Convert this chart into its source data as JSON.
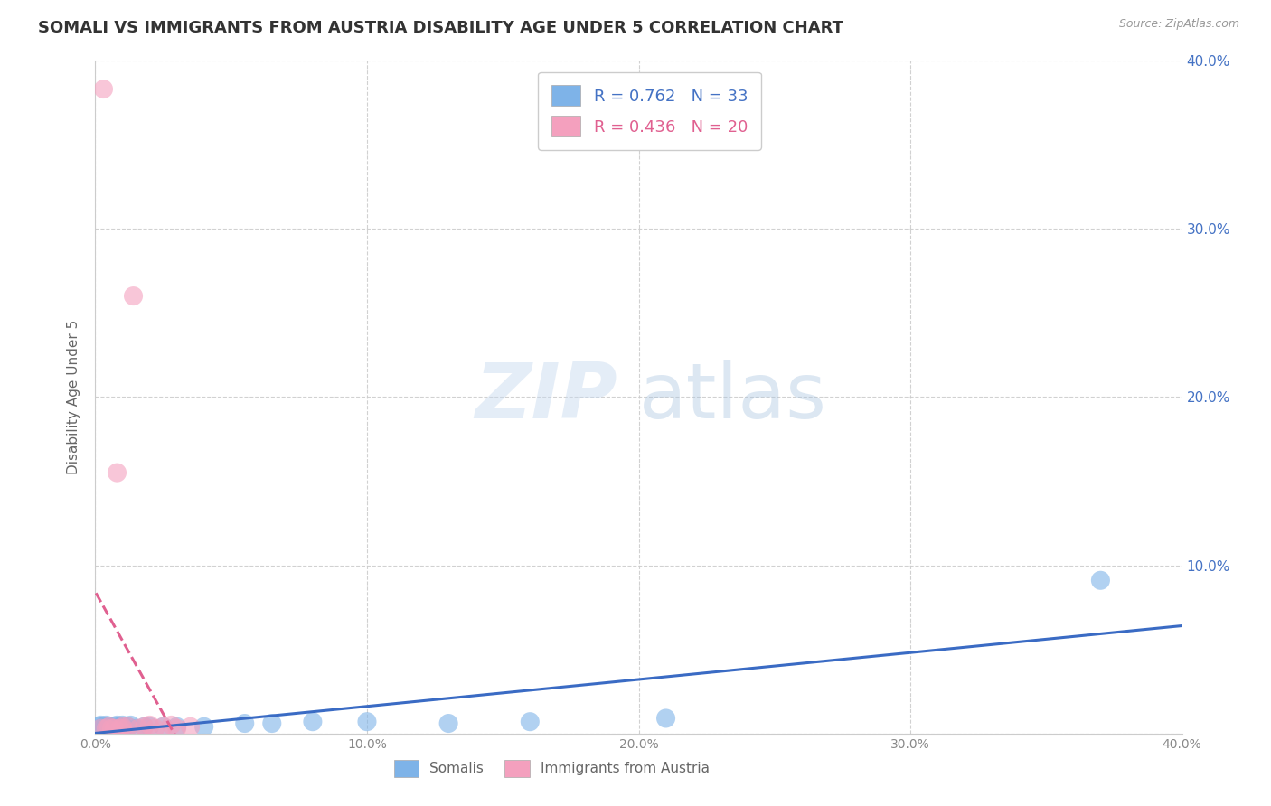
{
  "title": "SOMALI VS IMMIGRANTS FROM AUSTRIA DISABILITY AGE UNDER 5 CORRELATION CHART",
  "source": "Source: ZipAtlas.com",
  "ylabel": "Disability Age Under 5",
  "watermark_zip": "ZIP",
  "watermark_atlas": "atlas",
  "xlim": [
    0.0,
    0.4
  ],
  "ylim": [
    0.0,
    0.4
  ],
  "x_ticks": [
    0.0,
    0.1,
    0.2,
    0.3,
    0.4
  ],
  "y_ticks": [
    0.0,
    0.1,
    0.2,
    0.3,
    0.4
  ],
  "somali_color": "#7EB3E8",
  "austria_color": "#F4A0BE",
  "somali_line_color": "#3A6BC4",
  "austria_line_color": "#E06090",
  "somali_R": 0.762,
  "somali_N": 33,
  "austria_R": 0.436,
  "austria_N": 20,
  "legend_blue_color": "#4472C4",
  "legend_pink_color": "#E06090",
  "somali_x": [
    0.001,
    0.002,
    0.002,
    0.003,
    0.003,
    0.004,
    0.004,
    0.005,
    0.005,
    0.006,
    0.007,
    0.008,
    0.008,
    0.009,
    0.01,
    0.01,
    0.011,
    0.012,
    0.013,
    0.015,
    0.018,
    0.02,
    0.025,
    0.03,
    0.04,
    0.055,
    0.065,
    0.08,
    0.1,
    0.13,
    0.16,
    0.21,
    0.37
  ],
  "somali_y": [
    0.004,
    0.003,
    0.005,
    0.003,
    0.004,
    0.003,
    0.005,
    0.003,
    0.004,
    0.003,
    0.004,
    0.003,
    0.005,
    0.004,
    0.003,
    0.005,
    0.003,
    0.004,
    0.005,
    0.003,
    0.004,
    0.004,
    0.004,
    0.004,
    0.004,
    0.006,
    0.006,
    0.007,
    0.007,
    0.006,
    0.007,
    0.009,
    0.091
  ],
  "austria_x": [
    0.002,
    0.003,
    0.004,
    0.005,
    0.006,
    0.007,
    0.008,
    0.009,
    0.01,
    0.01,
    0.012,
    0.014,
    0.016,
    0.018,
    0.02,
    0.022,
    0.025,
    0.028,
    0.03,
    0.035
  ],
  "austria_y": [
    0.003,
    0.383,
    0.003,
    0.004,
    0.003,
    0.003,
    0.155,
    0.003,
    0.003,
    0.004,
    0.004,
    0.26,
    0.003,
    0.004,
    0.005,
    0.003,
    0.004,
    0.005,
    0.003,
    0.004
  ],
  "bg_color": "#FFFFFF",
  "grid_color": "#CCCCCC",
  "title_color": "#333333",
  "right_axis_color": "#4472C4",
  "tick_color": "#888888"
}
